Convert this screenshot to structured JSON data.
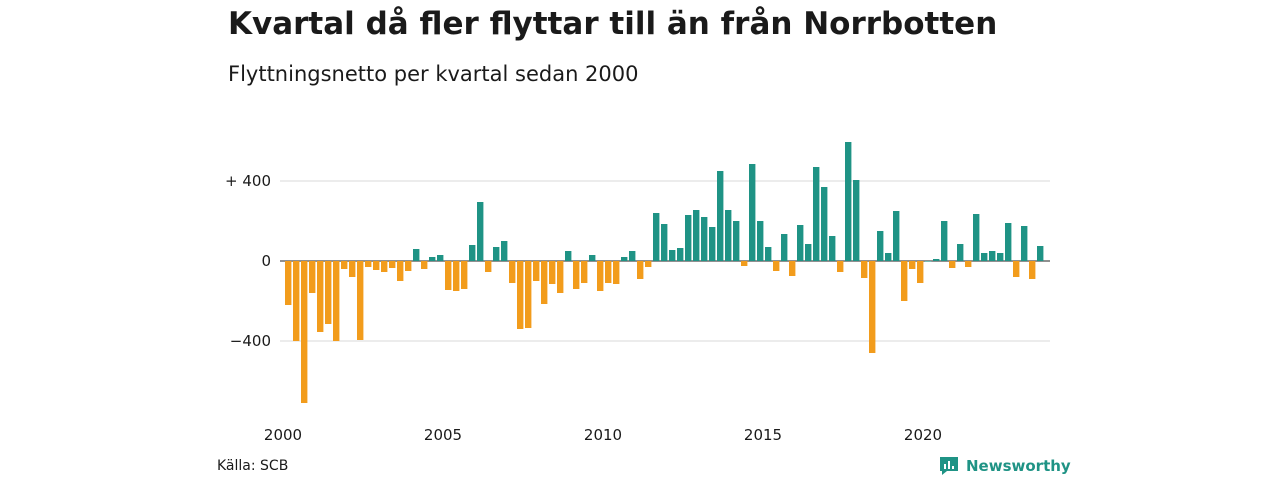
{
  "header": {
    "title": "Kvartal då fler flyttar till än från Norrbotten",
    "subtitle": "Flyttningsnetto per kvartal sedan 2000"
  },
  "footer": {
    "source": "Källa: SCB",
    "brand": "Newsworthy",
    "brand_icon": "newsworthy-logo-icon"
  },
  "colors": {
    "positive": "#1f9385",
    "negative": "#f29c1c",
    "grid": "#d9d9d9"
  },
  "chart_data": {
    "type": "bar",
    "title": "Kvartal då fler flyttar till än från Norrbotten",
    "subtitle": "Flyttningsnetto per kvartal sedan 2000",
    "xlabel": "",
    "ylabel": "",
    "ylim": [
      -720,
      600
    ],
    "yticks": [
      400,
      0,
      -400
    ],
    "ytick_labels": [
      "+ 400",
      "0",
      "−400"
    ],
    "xticks": [
      2000,
      2005,
      2010,
      2015,
      2020
    ],
    "xtick_labels": [
      "2000",
      "2005",
      "2010",
      "2015",
      "2020"
    ],
    "grid": true,
    "start_year": 2000,
    "start_quarter": 1,
    "values": [
      -220,
      -400,
      -710,
      -160,
      -355,
      -315,
      -400,
      -40,
      -80,
      -395,
      -30,
      -45,
      -55,
      -35,
      -100,
      -50,
      60,
      -40,
      20,
      30,
      -145,
      -150,
      -140,
      80,
      295,
      -55,
      70,
      100,
      -110,
      -340,
      -335,
      -100,
      -215,
      -115,
      -160,
      50,
      -140,
      -110,
      30,
      -150,
      -110,
      -115,
      20,
      50,
      -90,
      -30,
      240,
      185,
      55,
      65,
      230,
      255,
      220,
      170,
      450,
      255,
      200,
      -25,
      485,
      200,
      70,
      -50,
      135,
      -75,
      180,
      85,
      470,
      370,
      125,
      -55,
      595,
      405,
      -85,
      -460,
      150,
      40,
      250,
      -200,
      -40,
      -110,
      0,
      10,
      200,
      -35,
      85,
      -30,
      235,
      40,
      50,
      40,
      190,
      -80,
      175,
      -90,
      75
    ]
  }
}
